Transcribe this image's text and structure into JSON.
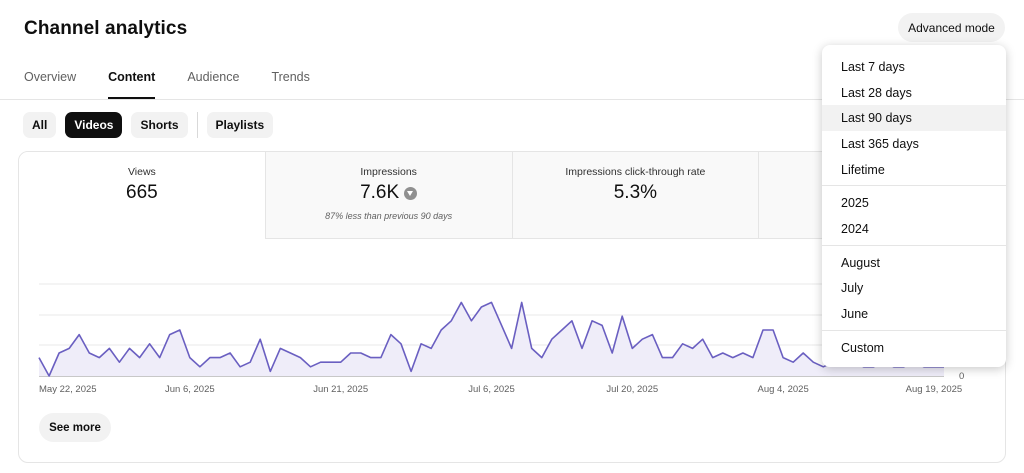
{
  "header": {
    "title": "Channel analytics",
    "advanced_mode_label": "Advanced mode"
  },
  "tabs": [
    {
      "label": "Overview",
      "active": false
    },
    {
      "label": "Content",
      "active": true
    },
    {
      "label": "Audience",
      "active": false
    },
    {
      "label": "Trends",
      "active": false
    }
  ],
  "chips": [
    {
      "label": "All",
      "active": false
    },
    {
      "label": "Videos",
      "active": true
    },
    {
      "label": "Shorts",
      "active": false
    },
    {
      "label": "Playlists",
      "active": false
    }
  ],
  "metrics": [
    {
      "label": "Views",
      "value": "665",
      "note": ""
    },
    {
      "label": "Impressions",
      "value": "7.6K",
      "note": "87% less than previous 90 days",
      "trend_icon": "arrow-down-circle-icon"
    },
    {
      "label": "Impressions click-through rate",
      "value": "5.3%",
      "note": ""
    }
  ],
  "chart_data": {
    "type": "area",
    "x_tick_labels": [
      "May 22, 2025",
      "Jun 6, 2025",
      "Jun 21, 2025",
      "Jul 6, 2025",
      "Jul 20, 2025",
      "Aug 4, 2025",
      "Aug 19, 2025"
    ],
    "y_tick_labels": [
      "0"
    ],
    "ylim": [
      0,
      20
    ],
    "grid": true,
    "series_color": "#6a5fc1",
    "fill_color": "#efedf9",
    "values": [
      4,
      0,
      5,
      6,
      9,
      5,
      4,
      6,
      3,
      6,
      4,
      7,
      4,
      9,
      10,
      4,
      2,
      4,
      4,
      5,
      2,
      3,
      8,
      1,
      6,
      5,
      4,
      2,
      3,
      3,
      3,
      5,
      5,
      4,
      4,
      9,
      7,
      1,
      7,
      6,
      10,
      12,
      16,
      12,
      15,
      16,
      11,
      6,
      16,
      6,
      4,
      8,
      10,
      12,
      6,
      12,
      11,
      5,
      13,
      6,
      8,
      9,
      4,
      4,
      7,
      6,
      8,
      4,
      5,
      4,
      5,
      4,
      10,
      10,
      4,
      3,
      5,
      3,
      2,
      3,
      3,
      3,
      2,
      2,
      3,
      2,
      2,
      3,
      2,
      2,
      2
    ]
  },
  "see_more_label": "See more",
  "dropdown": {
    "groups": [
      [
        {
          "label": "Last 7 days"
        },
        {
          "label": "Last 28 days"
        },
        {
          "label": "Last 90 days",
          "selected": true
        },
        {
          "label": "Last 365 days"
        },
        {
          "label": "Lifetime"
        }
      ],
      [
        {
          "label": "2025"
        },
        {
          "label": "2024"
        }
      ],
      [
        {
          "label": "August"
        },
        {
          "label": "July"
        },
        {
          "label": "June"
        }
      ],
      [
        {
          "label": "Custom"
        }
      ]
    ]
  }
}
